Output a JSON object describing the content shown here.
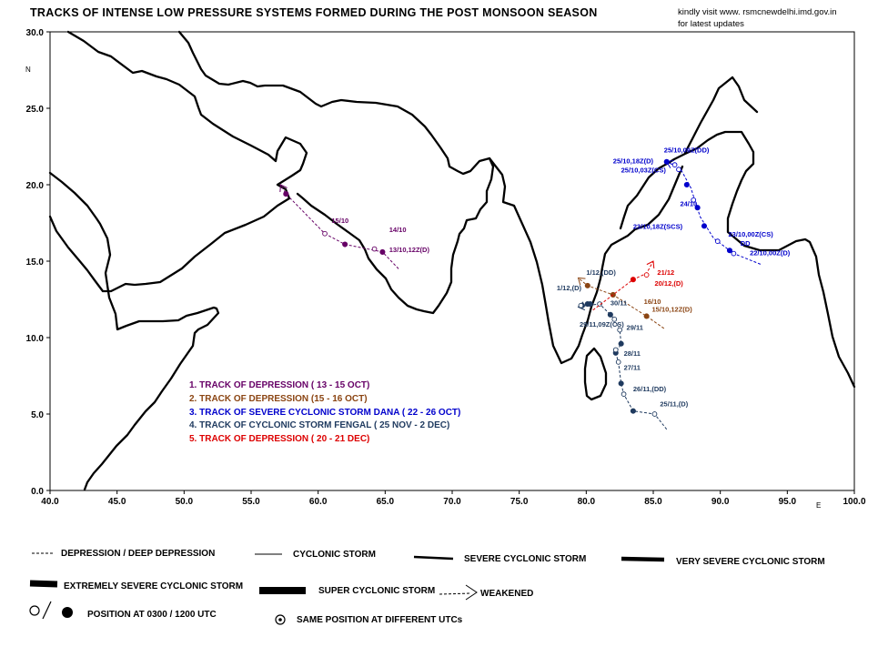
{
  "header": {
    "title": "TRACKS OF INTENSE LOW PRESSURE SYSTEMS FORMED DURING THE POST MONSOON SEASON",
    "note_line1": "kindly visit  www. rsmcnewdelhi.imd.gov.in",
    "note_line2": "for latest updates"
  },
  "axes": {
    "x_ticks": [
      "40.0",
      "45.0",
      "50.0",
      "55.0",
      "60.0",
      "65.0",
      "70.0",
      "75.0",
      "80.0",
      "85.0",
      "90.0",
      "95.0",
      "100.0"
    ],
    "y_ticks": [
      "0.0",
      "5.0",
      "10.0",
      "15.0",
      "20.0",
      "25.0",
      "30.0"
    ],
    "x_unit": "E",
    "y_unit": "N",
    "xlim": [
      40,
      100
    ],
    "ylim": [
      0,
      30
    ]
  },
  "tracks_legend": [
    {
      "text": "1. TRACK OF DEPRESSION ( 13 - 15 OCT)",
      "color": "#660066"
    },
    {
      "text": "2. TRACK OF DEPRESSION (15  - 16 OCT)",
      "color": "#8B4513"
    },
    {
      "text": "3. TRACK OF SEVERE CYCLONIC STORM DANA ( 22 - 26 OCT)",
      "color": "#0000CC"
    },
    {
      "text": "4. TRACK OF CYCLONIC STORM FENGAL ( 25 NOV - 2 DEC)",
      "color": "#1F3A5F"
    },
    {
      "text": "5. TRACK OF DEPRESSION ( 20 - 21 DEC)",
      "color": "#DD0000"
    }
  ],
  "tracks": [
    {
      "name": "depression-13-15-oct",
      "color": "#660066",
      "points": [
        [
          66.0,
          14.5
        ],
        [
          64.8,
          15.6
        ],
        [
          62.0,
          16.1
        ],
        [
          60.5,
          16.8
        ],
        [
          57.6,
          19.4
        ],
        [
          57.2,
          20.0
        ]
      ],
      "dots": [
        [
          64.8,
          15.6,
          "f"
        ],
        [
          64.2,
          15.8,
          "o"
        ],
        [
          62.0,
          16.1,
          "f"
        ],
        [
          60.5,
          16.8,
          "o"
        ],
        [
          57.6,
          19.4,
          "f"
        ]
      ],
      "labels": [
        {
          "text": "14/10",
          "at": [
            65.3,
            16.9
          ]
        },
        {
          "text": "13/10,12Z(D)",
          "at": [
            65.3,
            15.6
          ]
        },
        {
          "text": "15/10",
          "at": [
            61.0,
            17.5
          ]
        }
      ]
    },
    {
      "name": "depression-15-16-oct",
      "color": "#8B4513",
      "points": [
        [
          85.8,
          10.6
        ],
        [
          84.5,
          11.4
        ],
        [
          82.0,
          12.8
        ],
        [
          80.1,
          13.4
        ],
        [
          79.4,
          13.9
        ]
      ],
      "dots": [
        [
          84.5,
          11.4,
          "f"
        ],
        [
          82.0,
          12.8,
          "f"
        ],
        [
          80.1,
          13.4,
          "f"
        ]
      ],
      "labels": [
        {
          "text": "16/10",
          "at": [
            84.3,
            12.2
          ]
        },
        {
          "text": "15/10,12Z(D)",
          "at": [
            84.9,
            11.7
          ]
        }
      ]
    },
    {
      "name": "scs-dana-22-26-oct",
      "color": "#0000CC",
      "points": [
        [
          93.0,
          14.8
        ],
        [
          91.0,
          15.5
        ],
        [
          89.5,
          16.5
        ],
        [
          88.5,
          17.9
        ],
        [
          87.8,
          19.8
        ],
        [
          87.0,
          21.1
        ],
        [
          86.0,
          21.5
        ]
      ],
      "dots": [
        [
          91.0,
          15.5,
          "o"
        ],
        [
          90.7,
          15.7,
          "f"
        ],
        [
          89.8,
          16.3,
          "o"
        ],
        [
          88.8,
          17.3,
          "f"
        ],
        [
          88.3,
          18.5,
          "f"
        ],
        [
          88.0,
          19.0,
          "o"
        ],
        [
          87.5,
          20.0,
          "f"
        ],
        [
          86.9,
          21.0,
          "o"
        ],
        [
          86.6,
          21.3,
          "o"
        ],
        [
          86.0,
          21.5,
          "f"
        ]
      ],
      "labels": [
        {
          "text": "25/10,09Z(DD)",
          "at": [
            85.8,
            22.1
          ]
        },
        {
          "text": "25/10,18Z(D)",
          "at": [
            82.0,
            21.4
          ]
        },
        {
          "text": "25/10,03Z(CS)",
          "at": [
            82.6,
            20.8
          ]
        },
        {
          "text": "24/10",
          "at": [
            87.0,
            18.6
          ]
        },
        {
          "text": "23/10,18Z(SCS)",
          "at": [
            83.5,
            17.1
          ]
        },
        {
          "text": "23/10,00Z(CS)",
          "at": [
            90.6,
            16.6
          ]
        },
        {
          "text": "DD",
          "at": [
            91.5,
            16.0
          ]
        },
        {
          "text": "22/10,00Z(D)",
          "at": [
            92.2,
            15.4
          ]
        }
      ]
    },
    {
      "name": "cs-fengal-25-nov-2-dec",
      "color": "#1F3A5F",
      "points": [
        [
          86.0,
          4.0
        ],
        [
          85.1,
          5.0
        ],
        [
          83.5,
          5.2
        ],
        [
          82.8,
          6.3
        ],
        [
          82.6,
          7.0
        ],
        [
          82.4,
          8.4
        ],
        [
          82.2,
          9.0
        ],
        [
          82.6,
          9.6
        ],
        [
          82.5,
          10.5
        ],
        [
          82.1,
          11.2
        ],
        [
          81.8,
          11.5
        ],
        [
          81.0,
          12.2
        ],
        [
          80.0,
          12.1
        ],
        [
          79.4,
          12.0
        ]
      ],
      "dots": [
        [
          85.1,
          5.0,
          "o"
        ],
        [
          83.5,
          5.2,
          "f"
        ],
        [
          82.8,
          6.3,
          "o"
        ],
        [
          82.6,
          7.0,
          "f"
        ],
        [
          82.4,
          8.4,
          "o"
        ],
        [
          82.2,
          9.0,
          "f"
        ],
        [
          82.2,
          9.2,
          "o"
        ],
        [
          82.6,
          9.6,
          "f"
        ],
        [
          82.5,
          10.5,
          "o"
        ],
        [
          82.1,
          11.2,
          "o"
        ],
        [
          81.8,
          11.5,
          "f"
        ],
        [
          81.0,
          12.2,
          "o"
        ],
        [
          80.3,
          12.2,
          "f"
        ],
        [
          80.1,
          12.2,
          "f"
        ],
        [
          79.7,
          12.1,
          "f"
        ],
        [
          79.6,
          12.1,
          "o"
        ]
      ],
      "labels": [
        {
          "text": "25/11,(D)",
          "at": [
            85.5,
            5.5
          ]
        },
        {
          "text": "26/11,(DD)",
          "at": [
            83.5,
            6.5
          ]
        },
        {
          "text": "27/11",
          "at": [
            82.8,
            7.9
          ]
        },
        {
          "text": "28/11",
          "at": [
            82.8,
            8.8
          ]
        },
        {
          "text": "29/11",
          "at": [
            83.0,
            10.5
          ]
        },
        {
          "text": "29/11,09Z(CS)",
          "at": [
            79.5,
            10.7
          ]
        },
        {
          "text": "30/11",
          "at": [
            81.8,
            12.1
          ]
        },
        {
          "text": "1/12,(DD)",
          "at": [
            80.0,
            14.1
          ]
        },
        {
          "text": "1/12,(D)",
          "at": [
            77.8,
            13.1
          ]
        }
      ]
    },
    {
      "name": "depression-20-21-dec",
      "color": "#DD0000",
      "points": [
        [
          80.5,
          11.8
        ],
        [
          83.5,
          13.8
        ],
        [
          84.5,
          14.2
        ],
        [
          85.0,
          15.0
        ]
      ],
      "dots": [
        [
          83.5,
          13.8,
          "f"
        ],
        [
          84.5,
          14.1,
          "o"
        ]
      ],
      "labels": [
        {
          "text": "21/12",
          "at": [
            85.3,
            14.1
          ]
        },
        {
          "text": "20/12,(D)",
          "at": [
            85.1,
            13.4
          ]
        }
      ]
    }
  ],
  "legend_keys": {
    "depression": "DEPRESSION / DEEP DEPRESSION",
    "cyclonic": "CYCLONIC STORM",
    "severe": "SEVERE CYCLONIC STORM",
    "very_severe": "VERY SEVERE CYCLONIC STORM",
    "extremely_severe": "EXTREMELY SEVERE CYCLONIC STORM",
    "super": "SUPER CYCLONIC STORM",
    "weakened": "WEAKENED",
    "position": "POSITION AT 0300 / 1200 UTC",
    "same_position": "SAME POSITION AT DIFFERENT UTCs"
  }
}
